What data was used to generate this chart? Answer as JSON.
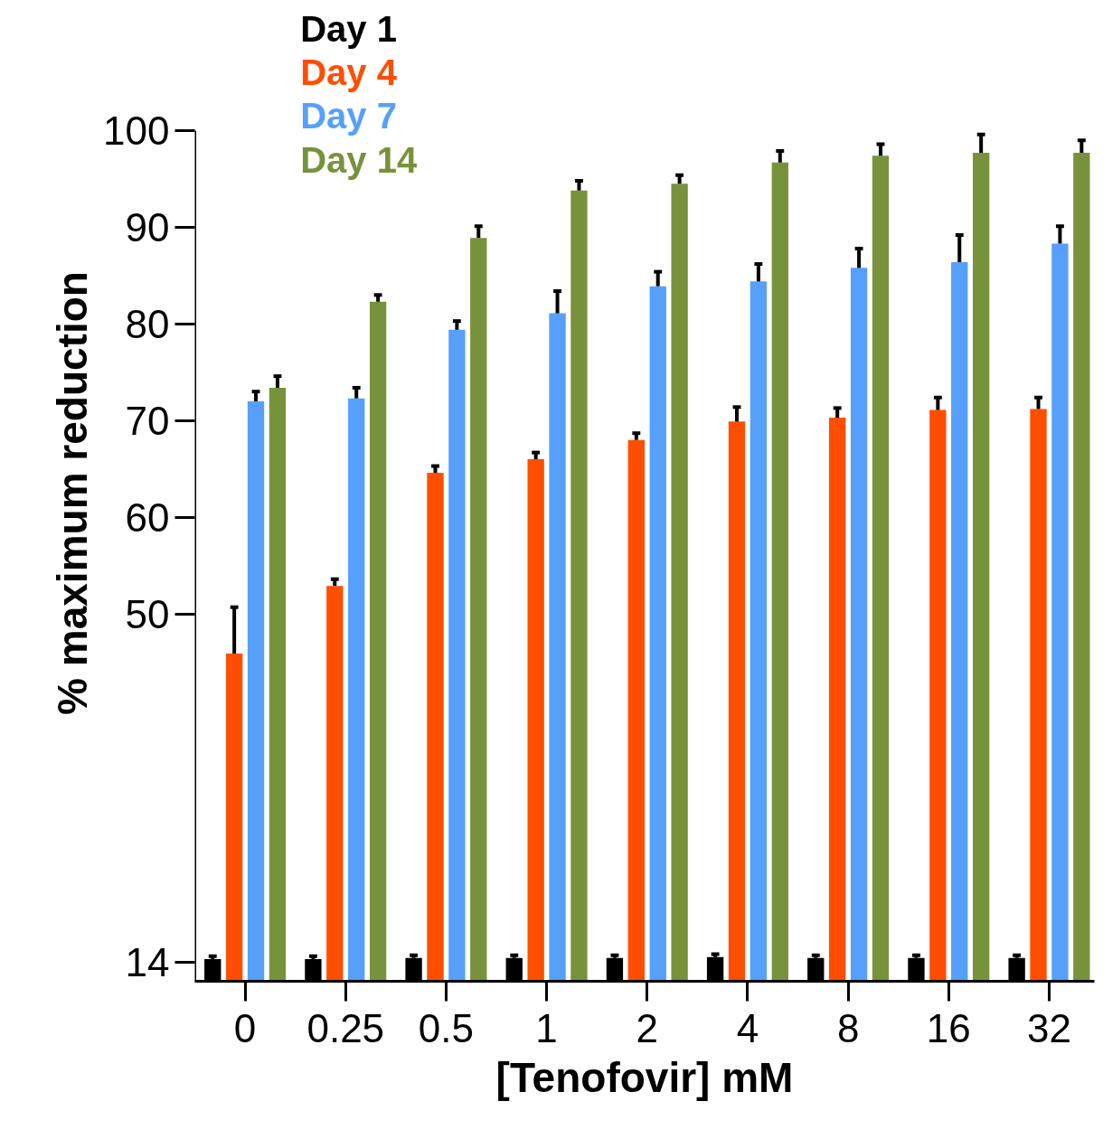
{
  "chart_data": {
    "type": "bar",
    "xlabel": "[Tenofovir] mM",
    "ylabel": "% maximum reduction",
    "categories": [
      "0",
      "0.25",
      "0.5",
      "1",
      "2",
      "4",
      "8",
      "16",
      "32"
    ],
    "ylim": [
      12,
      100
    ],
    "yticks": [
      14,
      50,
      60,
      70,
      80,
      90,
      100
    ],
    "legend": "top left",
    "grid": false,
    "series": [
      {
        "name": "Day 1",
        "color": "#000000",
        "values": [
          14.3,
          14.3,
          14.4,
          14.4,
          14.4,
          14.5,
          14.4,
          14.4,
          14.4
        ],
        "errors": [
          [
            14.3,
            14.6
          ],
          [
            14.3,
            14.6
          ],
          [
            14.4,
            14.7
          ],
          [
            14.4,
            14.7
          ],
          [
            14.4,
            14.7
          ],
          [
            14.5,
            14.8
          ],
          [
            14.4,
            14.7
          ],
          [
            14.4,
            14.7
          ],
          [
            14.4,
            14.7
          ]
        ]
      },
      {
        "name": "Day 4",
        "color": "#ff4e00",
        "values": [
          45.9,
          52.9,
          64.6,
          66.0,
          68.0,
          69.9,
          70.3,
          71.1,
          71.2
        ],
        "errors": [
          [
            45.9,
            50.7
          ],
          [
            52.9,
            53.6
          ],
          [
            64.6,
            65.3
          ],
          [
            66.0,
            66.7
          ],
          [
            68.0,
            68.7
          ],
          [
            69.9,
            71.4
          ],
          [
            70.3,
            71.3
          ],
          [
            71.1,
            72.4
          ],
          [
            71.2,
            72.4
          ]
        ]
      },
      {
        "name": "Day 7",
        "color": "#56a0fb",
        "values": [
          72.0,
          72.3,
          79.4,
          81.1,
          83.9,
          84.4,
          85.8,
          86.4,
          88.3
        ],
        "errors": [
          [
            72.0,
            73.0
          ],
          [
            72.3,
            73.4
          ],
          [
            79.4,
            80.3
          ],
          [
            81.1,
            83.4
          ],
          [
            83.9,
            85.4
          ],
          [
            84.4,
            86.2
          ],
          [
            85.8,
            87.8
          ],
          [
            86.4,
            89.2
          ],
          [
            88.3,
            90.1
          ]
        ]
      },
      {
        "name": "Day 14",
        "color": "#78923c",
        "values": [
          73.4,
          82.3,
          88.9,
          93.8,
          94.5,
          96.7,
          97.4,
          97.7,
          97.7
        ],
        "errors": [
          [
            73.4,
            74.6
          ],
          [
            82.3,
            83.0
          ],
          [
            88.9,
            90.1
          ],
          [
            93.8,
            94.8
          ],
          [
            94.5,
            95.4
          ],
          [
            96.7,
            97.9
          ],
          [
            97.4,
            98.6
          ],
          [
            97.7,
            99.6
          ],
          [
            97.7,
            99.0
          ]
        ]
      }
    ]
  }
}
